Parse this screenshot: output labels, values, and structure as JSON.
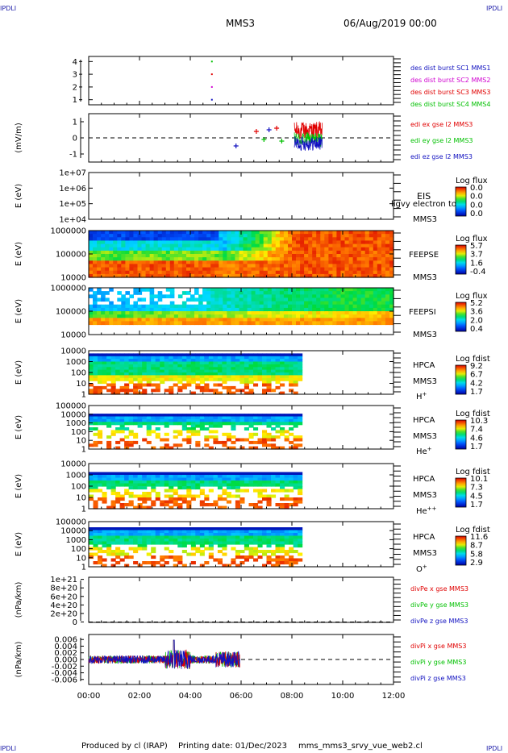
{
  "header": {
    "corner_label": "IPDLI",
    "mission": "MMS3",
    "datetime": "06/Aug/2019 00:00"
  },
  "footer": {
    "produced_by": "Produced by cl (IRAP)",
    "printing_date": "Printing date: 01/Dec/2023",
    "script_name": "mms_mms3_srvy_vue_web2.cl"
  },
  "colors": {
    "mms1": "#1010c0",
    "mms2": "#d000d0",
    "mms3": "#e00000",
    "mms4": "#00c000",
    "x": "#e00000",
    "y": "#00c000",
    "z": "#1010c0"
  },
  "chart_data": [
    {
      "type": "scatter",
      "yticks": [
        "1",
        "2",
        "3",
        "4"
      ],
      "ylim": [
        0.6,
        4.4
      ],
      "series": [
        {
          "name": "des dist burst SC1 MMS1",
          "color_key": "mms1",
          "x": [
            4.85
          ],
          "y": [
            1
          ]
        },
        {
          "name": "des dist burst SC2 MMS2",
          "color_key": "mms2",
          "x": [
            4.85
          ],
          "y": [
            2
          ]
        },
        {
          "name": "des dist burst SC3 MMS3",
          "color_key": "mms3",
          "x": [
            4.85
          ],
          "y": [
            3
          ]
        },
        {
          "name": "des dist burst SC4 MMS4",
          "color_key": "mms4",
          "x": [
            4.85
          ],
          "y": [
            4
          ]
        }
      ]
    },
    {
      "type": "line",
      "ylabel": "(mV/m)",
      "yticks": [
        "-1",
        "0",
        "1"
      ],
      "ylim": [
        -1.5,
        1.5
      ],
      "series": [
        {
          "name": "edi ex gse l2 MMS3",
          "color_key": "x"
        },
        {
          "name": "edi ey gse l2 MMS3",
          "color_key": "y"
        },
        {
          "name": "edi ez gse l2 MMS3",
          "color_key": "z"
        }
      ]
    },
    {
      "type": "heatmap",
      "ylabel": "E (eV)",
      "yticks": [
        "1e+04",
        "1e+05",
        "1e+06",
        "1e+07"
      ],
      "instrument": "EIS",
      "note": "ligvy electron to",
      "spacecraft": "MMS3",
      "colorbar_label": "Log flux",
      "colorbar_ticks": [
        "0.0",
        "0.0",
        "0.0",
        "0.0"
      ]
    },
    {
      "type": "heatmap",
      "ylabel": "E (eV)",
      "yticks": [
        "10000",
        "100000",
        "1000000"
      ],
      "instrument": "FEEPSE",
      "spacecraft": "MMS3",
      "colorbar_label": "Log flux",
      "colorbar_ticks": [
        "5.7",
        "3.7",
        "1.6",
        "-0.4"
      ]
    },
    {
      "type": "heatmap",
      "ylabel": "E (eV)",
      "yticks": [
        "10000",
        "100000",
        "1000000"
      ],
      "instrument": "FEEPSI",
      "spacecraft": "MMS3",
      "colorbar_label": "Log flux",
      "colorbar_ticks": [
        "5.2",
        "3.6",
        "2.0",
        "0.4"
      ]
    },
    {
      "type": "heatmap",
      "ylabel": "E (eV)",
      "yticks": [
        "1",
        "10",
        "100",
        "1000",
        "10000"
      ],
      "instrument": "HPCA",
      "spacecraft": "MMS3",
      "species": "H",
      "species_sup": "+",
      "colorbar_label": "Log fdist",
      "colorbar_ticks": [
        "9.2",
        "6.7",
        "4.2",
        "1.7"
      ],
      "data_end_hour": 8.4
    },
    {
      "type": "heatmap",
      "ylabel": "E (eV)",
      "yticks": [
        "1",
        "10",
        "100",
        "1000",
        "10000",
        "100000"
      ],
      "instrument": "HPCA",
      "spacecraft": "MMS3",
      "species": "He",
      "species_sup": "+",
      "colorbar_label": "Log fdist",
      "colorbar_ticks": [
        "10.3",
        "7.4",
        "4.6",
        "1.7"
      ],
      "data_end_hour": 8.4
    },
    {
      "type": "heatmap",
      "ylabel": "E (eV)",
      "yticks": [
        "1",
        "10",
        "100",
        "1000",
        "10000"
      ],
      "instrument": "HPCA",
      "spacecraft": "MMS3",
      "species": "He",
      "species_sup": "++",
      "colorbar_label": "Log fdist",
      "colorbar_ticks": [
        "10.1",
        "7.3",
        "4.5",
        "1.7"
      ],
      "data_end_hour": 8.4
    },
    {
      "type": "heatmap",
      "ylabel": "E (eV)",
      "yticks": [
        "1",
        "10",
        "100",
        "1000",
        "10000",
        "100000"
      ],
      "instrument": "HPCA",
      "spacecraft": "MMS3",
      "species": "O",
      "species_sup": "+",
      "colorbar_label": "Log fdist",
      "colorbar_ticks": [
        "11.6",
        "8.7",
        "5.8",
        "2.9"
      ],
      "data_end_hour": 8.4
    },
    {
      "type": "line",
      "ylabel": "(nPa/km)",
      "yticks": [
        "0",
        "2e+20",
        "4e+20",
        "6e+20",
        "8e+20",
        "1e+21"
      ],
      "ylim": [
        -1e+19,
        1.05e+21
      ],
      "series": [
        {
          "name": "divPe x gse MMS3",
          "color_key": "x"
        },
        {
          "name": "divPe y gse MMS3",
          "color_key": "y"
        },
        {
          "name": "divPe z gse MMS3",
          "color_key": "z"
        }
      ]
    },
    {
      "type": "line",
      "ylabel": "(nPa/km)",
      "yticks": [
        "-0.006",
        "-0.004",
        "-0.002",
        "0.000",
        "0.002",
        "0.004",
        "0.006"
      ],
      "ylim": [
        -0.0075,
        0.0075
      ],
      "data_end_hour": 5.95,
      "series": [
        {
          "name": "divPi x gse MMS3",
          "color_key": "x"
        },
        {
          "name": "divPi y gse MMS3",
          "color_key": "y"
        },
        {
          "name": "divPi z gse MMS3",
          "color_key": "z"
        }
      ]
    }
  ],
  "time_axis": {
    "ticks": [
      "00:00",
      "02:00",
      "04:00",
      "06:00",
      "08:00",
      "10:00",
      "12:00"
    ],
    "xlim_hours": [
      0,
      12
    ]
  }
}
